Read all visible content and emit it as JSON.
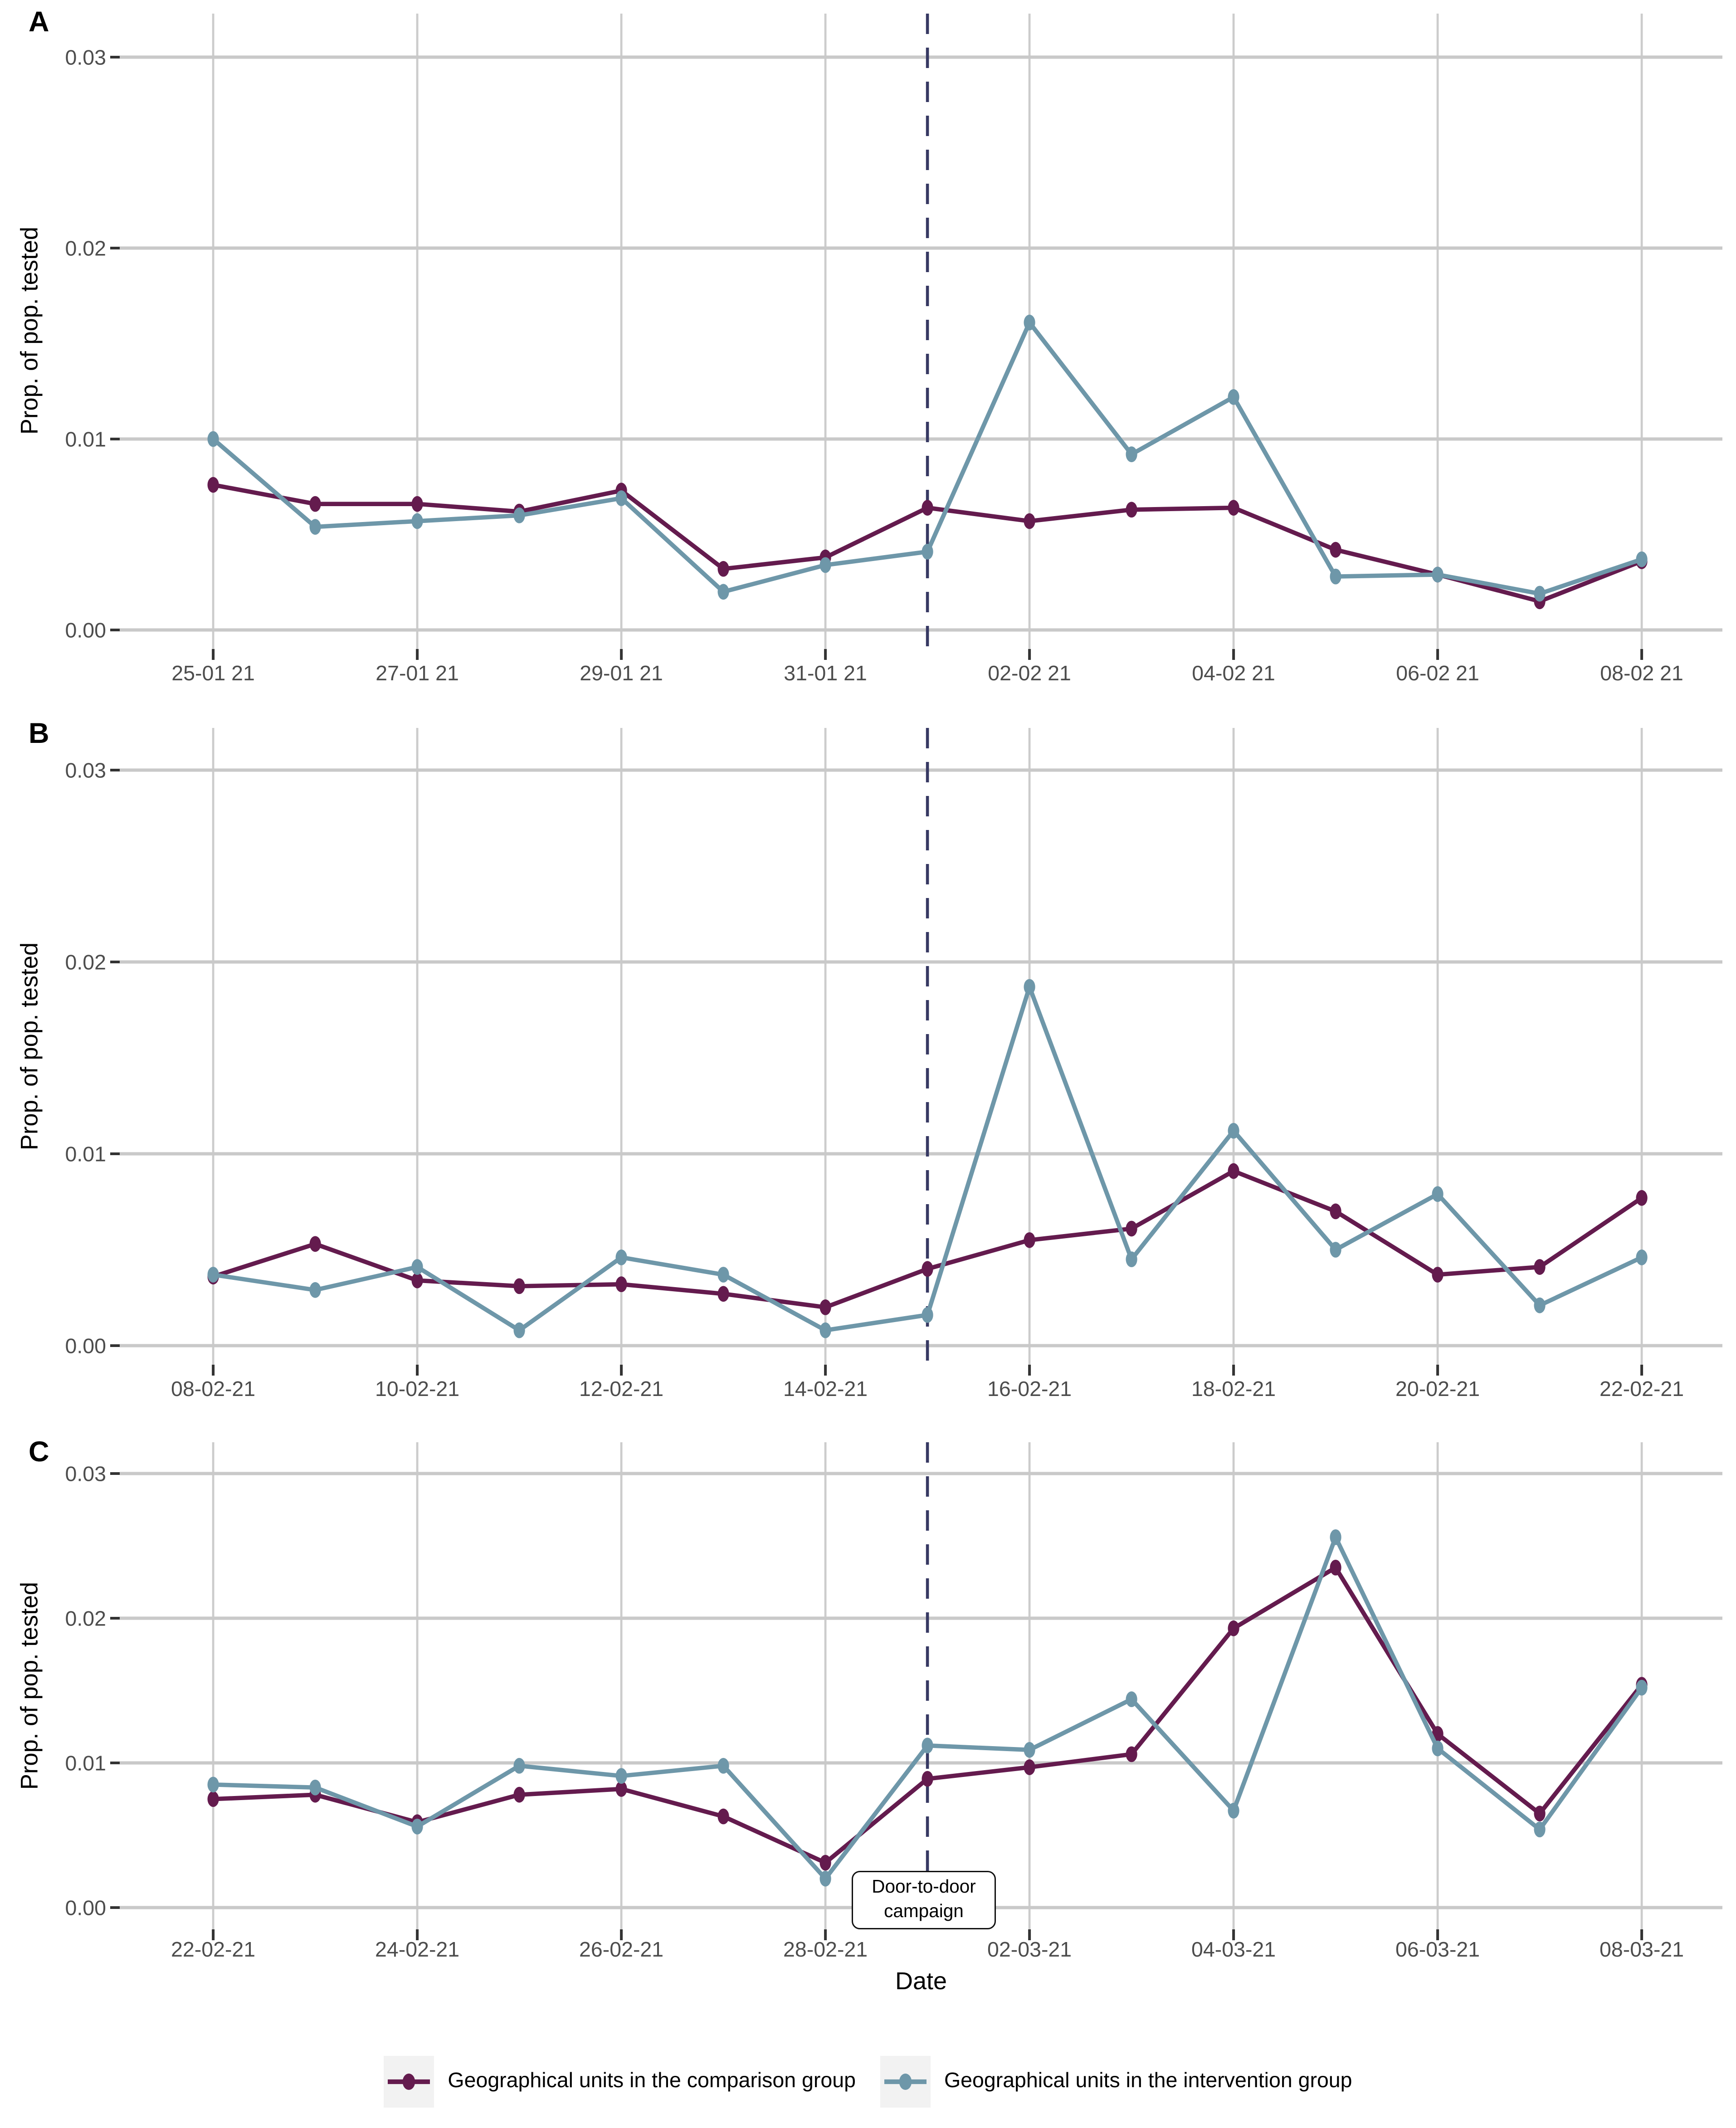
{
  "figure": {
    "x_axis_title": "Date",
    "y_axis_title": "Prop. of pop. tested",
    "y_tick_labels": [
      "0.00",
      "0.01",
      "0.02",
      "0.03"
    ],
    "panels": [
      {
        "label": "A",
        "y_axis_title": "Prop. of pop. tested"
      },
      {
        "label": "B",
        "y_axis_title": "Prop. of pop. tested"
      },
      {
        "label": "C",
        "y_axis_title": "Prop. of pop. tested"
      }
    ],
    "annotation": {
      "panel": "C",
      "line1": "Door-to-door",
      "line2": "campaign"
    },
    "legend": [
      {
        "name": "comparison",
        "label": "Geographical units in the comparison group",
        "color": "#641B4E"
      },
      {
        "name": "intervention",
        "label": "Geographical units in the intervention group",
        "color": "#6E97A9"
      }
    ],
    "colors": {
      "comparison": "#641B4E",
      "intervention": "#6E97A9",
      "vline": "#373963",
      "grid_h": "#C9C9C9",
      "grid_v": "#CCCCCC",
      "tick_mark": "#333333",
      "tick_text": "#4D4D4D",
      "legend_key_bg": "#F2F2F2"
    }
  },
  "chart_data": [
    {
      "type": "line",
      "panel": "A",
      "ylabel": "Prop. of pop. tested",
      "ylim": [
        0,
        0.031
      ],
      "y_ticks": [
        0,
        0.01,
        0.02,
        0.03
      ],
      "y_tick_labels": [
        "0.00",
        "0.01",
        "0.02",
        "0.03"
      ],
      "x": [
        "25-01-21",
        "26-01-21",
        "27-01-21",
        "28-01-21",
        "29-01-21",
        "30-01-21",
        "31-01-21",
        "01-02-21",
        "02-02-21",
        "03-02-21",
        "04-02-21",
        "05-02-21",
        "06-02-21",
        "07-02-21",
        "08-02-21"
      ],
      "x_tick_indices": [
        0,
        2,
        4,
        6,
        8,
        10,
        12,
        14
      ],
      "x_tick_labels": [
        "25-01 21",
        "27-01 21",
        "29-01 21",
        "31-01 21",
        "02-02 21",
        "04-02 21",
        "06-02 21",
        "08-02 21"
      ],
      "vline_index": 7,
      "vline_date": "01-02-21",
      "series": [
        {
          "name": "comparison",
          "label": "Geographical units in the comparison group",
          "values": [
            0.0076,
            0.0066,
            0.0066,
            0.0062,
            0.0073,
            0.0032,
            0.0038,
            0.0064,
            0.0057,
            0.0063,
            0.0064,
            0.0042,
            0.0029,
            0.0015,
            0.0036
          ]
        },
        {
          "name": "intervention",
          "label": "Geographical units in the intervention group",
          "values": [
            0.01,
            0.0054,
            0.0057,
            0.006,
            0.0069,
            0.002,
            0.0034,
            0.0041,
            0.0161,
            0.0092,
            0.0122,
            0.0028,
            0.0029,
            0.0019,
            0.0037
          ]
        }
      ]
    },
    {
      "type": "line",
      "panel": "B",
      "ylabel": "Prop. of pop. tested",
      "ylim": [
        0,
        0.031
      ],
      "y_ticks": [
        0,
        0.01,
        0.02,
        0.03
      ],
      "y_tick_labels": [
        "0.00",
        "0.01",
        "0.02",
        "0.03"
      ],
      "x": [
        "08-02-21",
        "09-02-21",
        "10-02-21",
        "11-02-21",
        "12-02-21",
        "13-02-21",
        "14-02-21",
        "15-02-21",
        "16-02-21",
        "17-02-21",
        "18-02-21",
        "19-02-21",
        "20-02-21",
        "21-02-21",
        "22-02-21"
      ],
      "x_tick_indices": [
        0,
        2,
        4,
        6,
        8,
        10,
        12,
        14
      ],
      "x_tick_labels": [
        "08-02-21",
        "10-02-21",
        "12-02-21",
        "14-02-21",
        "16-02-21",
        "18-02-21",
        "20-02-21",
        "22-02-21"
      ],
      "vline_index": 7,
      "vline_date": "15-02-21",
      "series": [
        {
          "name": "comparison",
          "label": "Geographical units in the comparison group",
          "values": [
            0.0036,
            0.0053,
            0.0034,
            0.0031,
            0.0032,
            0.0027,
            0.002,
            0.004,
            0.0055,
            0.0061,
            0.0091,
            0.007,
            0.0037,
            0.0041,
            0.0077
          ]
        },
        {
          "name": "intervention",
          "label": "Geographical units in the intervention group",
          "values": [
            0.0037,
            0.0029,
            0.0041,
            0.0008,
            0.0046,
            0.0037,
            0.0008,
            0.0016,
            0.0187,
            0.0045,
            0.0112,
            0.005,
            0.0079,
            0.0021,
            0.0046
          ]
        }
      ]
    },
    {
      "type": "line",
      "panel": "C",
      "xlabel": "Date",
      "ylabel": "Prop. of pop. tested",
      "ylim": [
        0,
        0.031
      ],
      "y_ticks": [
        0,
        0.01,
        0.02,
        0.03
      ],
      "y_tick_labels": [
        "0.00",
        "0.01",
        "0.02",
        "0.03"
      ],
      "x": [
        "22-02-21",
        "23-02-21",
        "24-02-21",
        "25-02-21",
        "26-02-21",
        "27-02-21",
        "28-02-21",
        "01-03-21",
        "02-03-21",
        "03-03-21",
        "04-03-21",
        "05-03-21",
        "06-03-21",
        "07-03-21",
        "08-03-21"
      ],
      "x_tick_indices": [
        0,
        2,
        4,
        6,
        8,
        10,
        12,
        14
      ],
      "x_tick_labels": [
        "22-02-21",
        "24-02-21",
        "26-02-21",
        "28-02-21",
        "02-03-21",
        "04-03-21",
        "06-03-21",
        "08-03-21"
      ],
      "vline_index": 7,
      "vline_date": "01-03-21",
      "annotation": {
        "line1": "Door-to-door",
        "line2": "campaign"
      },
      "series": [
        {
          "name": "comparison",
          "label": "Geographical units in the comparison group",
          "values": [
            0.0075,
            0.0078,
            0.0059,
            0.0078,
            0.0082,
            0.0063,
            0.0031,
            0.0089,
            0.0097,
            0.0106,
            0.0193,
            0.0235,
            0.012,
            0.0065,
            0.0154
          ]
        },
        {
          "name": "intervention",
          "label": "Geographical units in the intervention group",
          "values": [
            0.0085,
            0.0083,
            0.0056,
            0.0098,
            0.0091,
            0.0098,
            0.002,
            0.0112,
            0.0109,
            0.0144,
            0.0067,
            0.0256,
            0.011,
            0.0054,
            0.0152
          ]
        }
      ]
    }
  ]
}
